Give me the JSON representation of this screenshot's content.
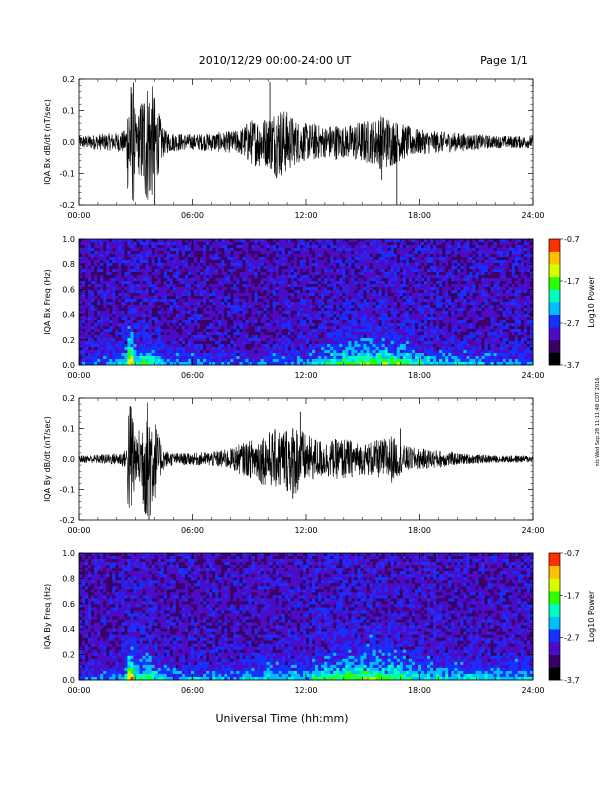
{
  "header": {
    "title": "2010/12/29  00:00-24:00 UT",
    "page": "Page 1/1"
  },
  "x_axis": {
    "ticks": [
      "00:00",
      "06:00",
      "12:00",
      "18:00",
      "24:00"
    ],
    "label": "Universal Time (hh:mm)"
  },
  "side_note": "ntt Wed Sep 28 11:11:48 CDT 2016",
  "colors": {
    "trace": "#000000",
    "colormap": [
      "#000000",
      "#3b0066",
      "#4b0cc8",
      "#1530ff",
      "#00bfff",
      "#00ffc0",
      "#2cff00",
      "#d8ff00",
      "#ffc000",
      "#ff3000"
    ]
  },
  "chart_data": [
    {
      "type": "line",
      "panel": "Bx dB/dt",
      "ylabel": "IQA Bx dB/dt (nT/sec)",
      "ylim": [
        -0.2,
        0.2
      ],
      "yticks": [
        "0.2",
        "0.1",
        "0.0",
        "-0.1",
        "-0.2"
      ],
      "x_unit": "hours UT",
      "xlim": [
        0,
        24
      ],
      "envelope": {
        "x": [
          0,
          1,
          2,
          2.5,
          2.6,
          2.9,
          3.0,
          3.5,
          3.8,
          4.2,
          4.5,
          5,
          6,
          7,
          8,
          8.5,
          9,
          9.5,
          10,
          10.5,
          11,
          11.5,
          12,
          12.5,
          13,
          13.5,
          14,
          14.5,
          15,
          15.5,
          16,
          16.5,
          17,
          17.5,
          18,
          19,
          20,
          21,
          22,
          23,
          24
        ],
        "y": [
          0.02,
          0.025,
          0.03,
          0.04,
          0.2,
          0.2,
          0.06,
          0.2,
          0.2,
          0.1,
          0.04,
          0.03,
          0.025,
          0.03,
          0.035,
          0.04,
          0.07,
          0.08,
          0.08,
          0.12,
          0.1,
          0.07,
          0.06,
          0.06,
          0.05,
          0.06,
          0.05,
          0.06,
          0.07,
          0.07,
          0.09,
          0.08,
          0.06,
          0.05,
          0.04,
          0.035,
          0.03,
          0.025,
          0.02,
          0.02,
          0.02
        ]
      },
      "spikes": [
        {
          "x": 10.1,
          "y": 0.19
        },
        {
          "x": 16.8,
          "y": -0.2
        },
        {
          "x": 16.0,
          "y": -0.12
        },
        {
          "x": 4.0,
          "y": -0.2
        }
      ]
    },
    {
      "type": "heatmap",
      "panel": "Bx spectrogram",
      "ylabel": "IQA Bx Freq (Hz)",
      "ylim": [
        0,
        1.0
      ],
      "yticks": [
        "1.0",
        "0.8",
        "0.6",
        "0.4",
        "0.2",
        "0.0"
      ],
      "colorbar": {
        "label": "Log10 Power",
        "ticks": [
          "-0.7",
          "-1.7",
          "-2.7",
          "-3.7"
        ],
        "range": [
          -3.7,
          -0.7
        ]
      },
      "activity": {
        "x": [
          0,
          1,
          2,
          2.5,
          2.7,
          3.0,
          3.5,
          4.0,
          4.5,
          5,
          6,
          8,
          10,
          12,
          14,
          15,
          16,
          17,
          18,
          20,
          22,
          24
        ],
        "level": [
          0.15,
          0.2,
          0.3,
          0.4,
          1.0,
          0.4,
          0.55,
          0.45,
          0.35,
          0.3,
          0.25,
          0.2,
          0.25,
          0.3,
          0.55,
          0.6,
          0.65,
          0.55,
          0.45,
          0.35,
          0.3,
          0.3
        ]
      }
    },
    {
      "type": "line",
      "panel": "By dB/dt",
      "ylabel": "IQA By dB/dt (nT/sec)",
      "ylim": [
        -0.2,
        0.2
      ],
      "yticks": [
        "0.2",
        "0.1",
        "0.0",
        "-0.1",
        "-0.2"
      ],
      "x_unit": "hours UT",
      "xlim": [
        0,
        24
      ],
      "envelope": {
        "x": [
          0,
          1,
          2,
          2.5,
          2.6,
          2.9,
          3.0,
          3.5,
          3.8,
          4.2,
          4.5,
          5,
          6,
          7,
          8,
          8.5,
          9,
          9.5,
          10,
          10.5,
          11,
          11.5,
          12,
          12.5,
          13,
          13.5,
          14,
          14.5,
          15,
          15.5,
          16,
          16.5,
          17,
          17.5,
          18,
          19,
          20,
          21,
          22,
          23,
          24
        ],
        "y": [
          0.012,
          0.015,
          0.02,
          0.03,
          0.2,
          0.2,
          0.05,
          0.2,
          0.2,
          0.08,
          0.03,
          0.02,
          0.02,
          0.025,
          0.035,
          0.05,
          0.06,
          0.08,
          0.09,
          0.1,
          0.11,
          0.12,
          0.08,
          0.07,
          0.06,
          0.065,
          0.07,
          0.06,
          0.05,
          0.06,
          0.065,
          0.08,
          0.05,
          0.04,
          0.035,
          0.03,
          0.02,
          0.015,
          0.012,
          0.012,
          0.012
        ]
      },
      "spikes": [
        {
          "x": 11.7,
          "y": 0.155
        },
        {
          "x": 11.3,
          "y": -0.13
        },
        {
          "x": 17.0,
          "y": 0.1
        },
        {
          "x": 3.7,
          "y": -0.2
        }
      ]
    },
    {
      "type": "heatmap",
      "panel": "By spectrogram",
      "ylabel": "IQA By Freq (Hz)",
      "ylim": [
        0,
        1.0
      ],
      "yticks": [
        "1.0",
        "0.8",
        "0.6",
        "0.4",
        "0.2",
        "0.0"
      ],
      "colorbar": {
        "label": "Log10 Power",
        "ticks": [
          "-0.7",
          "-1.7",
          "-2.7",
          "-3.7"
        ],
        "range": [
          -3.7,
          -0.7
        ]
      },
      "activity": {
        "x": [
          0,
          1,
          2,
          2.5,
          2.7,
          3.0,
          3.5,
          4.0,
          4.5,
          5,
          6,
          8,
          10,
          12,
          14,
          15,
          16,
          17,
          18,
          20,
          22,
          24
        ],
        "level": [
          0.2,
          0.25,
          0.3,
          0.4,
          1.0,
          0.45,
          0.55,
          0.45,
          0.35,
          0.3,
          0.3,
          0.3,
          0.4,
          0.4,
          0.6,
          0.65,
          0.6,
          0.55,
          0.45,
          0.4,
          0.35,
          0.35
        ]
      }
    }
  ]
}
